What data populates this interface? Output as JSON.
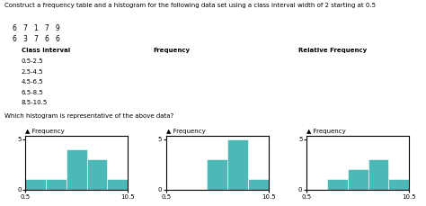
{
  "chart_data": [
    {
      "type": "histogram",
      "annotations": [
        "Construct a frequency table and a histogram for the following data set using a class interval width of 2 starting at 0.5",
        "6   7   1   7   9",
        "6   3   7   6   6",
        "Class Interval",
        "Frequency",
        "Relative Frequency",
        "0.5-2.5",
        "2.5-4.5",
        "4.5-6.5",
        "6.5-8.5",
        "8.5-10.5",
        "Which histogram is representative of the above data?"
      ],
      "bins": [
        0.5,
        2.5,
        4.5,
        6.5,
        8.5,
        10.5
      ],
      "values": [
        1,
        1,
        4,
        3,
        1
      ],
      "color": "#4db8b8",
      "ylabel": "▲ Frequency",
      "xlim": [
        0.5,
        10.5
      ],
      "xticks": [
        0.5,
        10.5
      ],
      "ylim": [
        0,
        5.3
      ],
      "yticks": [
        0,
        5
      ]
    },
    {
      "type": "histogram",
      "bins": [
        0.5,
        2.5,
        4.5,
        6.5,
        8.5,
        10.5
      ],
      "values": [
        0,
        0,
        3,
        5,
        1
      ],
      "color": "#4db8b8",
      "ylabel": "▲ Frequency",
      "xlim": [
        0.5,
        10.5
      ],
      "xticks": [
        0.5,
        10.5
      ],
      "ylim": [
        0,
        5.3
      ],
      "yticks": [
        0,
        5
      ]
    },
    {
      "type": "histogram",
      "bins": [
        0.5,
        2.5,
        4.5,
        6.5,
        8.5,
        10.5
      ],
      "values": [
        0,
        1,
        2,
        3,
        1
      ],
      "color": "#4db8b8",
      "ylabel": "▲ Frequency",
      "xlim": [
        0.5,
        10.5
      ],
      "xticks": [
        0.5,
        10.5
      ],
      "ylim": [
        0,
        5.3
      ],
      "yticks": [
        0,
        5
      ]
    }
  ]
}
